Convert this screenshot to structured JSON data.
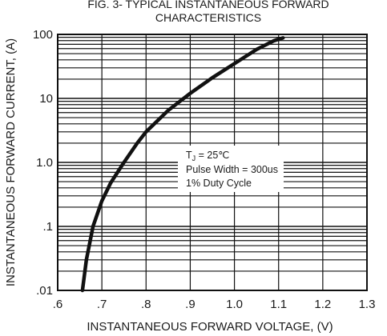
{
  "chart_data": {
    "type": "line",
    "title_line1": "FIG. 3- TYPICAL INSTANTANEOUS FORWARD",
    "title_line2": "CHARACTERISTICS",
    "xlabel": "INSTANTANEOUS FORWARD VOLTAGE, (V)",
    "ylabel": "INSTANTANEOUS FORWARD CURRENT, (A)",
    "x_scale": "linear",
    "y_scale": "log",
    "xlim": [
      0.6,
      1.3
    ],
    "ylim": [
      0.01,
      100
    ],
    "x_ticks": [
      0.6,
      0.7,
      0.8,
      0.9,
      1.0,
      1.1,
      1.2,
      1.3
    ],
    "x_tick_labels": [
      ".6",
      ".7",
      ".8",
      ".9",
      "1.0",
      "1.1",
      "1.2",
      "1.3"
    ],
    "y_ticks": [
      0.01,
      0.1,
      1,
      10,
      100
    ],
    "y_tick_labels": [
      ".01",
      ".1",
      "1.0",
      "10",
      "100"
    ],
    "grid": true,
    "annotation": {
      "tj_symbol": "T",
      "tj_subscript": "J",
      "tj_value": " = 25℃",
      "line2": "Pulse Width = 300us",
      "line3": "1% Duty Cycle"
    },
    "series": [
      {
        "x": [
          0.656,
          0.665,
          0.68,
          0.7,
          0.72,
          0.75,
          0.78,
          0.8,
          0.85,
          0.9,
          0.95,
          1.0,
          1.05,
          1.09,
          1.11
        ],
        "y": [
          0.01,
          0.03,
          0.1,
          0.25,
          0.48,
          1.0,
          2.0,
          3.0,
          6.5,
          12,
          21,
          35,
          58,
          80,
          88
        ]
      }
    ]
  }
}
